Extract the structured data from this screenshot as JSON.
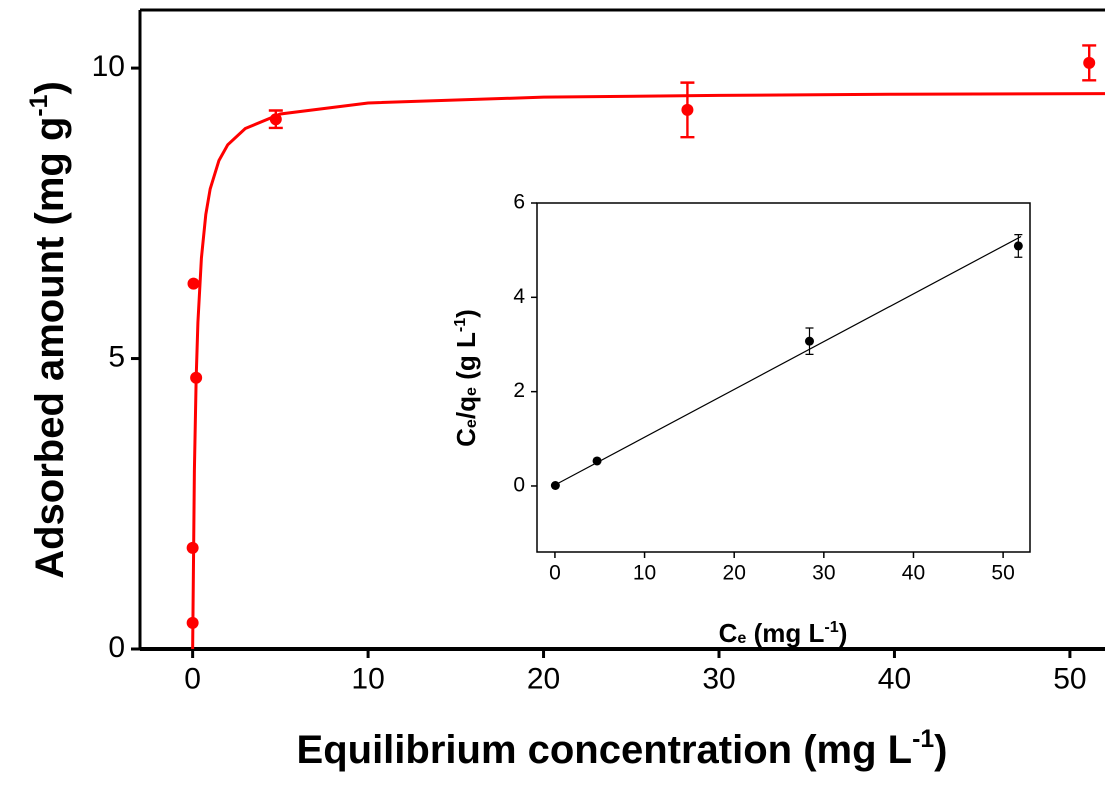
{
  "chart_data": [
    {
      "type": "scatter",
      "xlabel": [
        {
          "t": "Equilibrium concentration (mg L"
        },
        {
          "t": "-1",
          "s": "sup"
        },
        {
          "t": ")"
        }
      ],
      "ylabel": [
        {
          "t": "Adsorbed amount (mg g"
        },
        {
          "t": "-1",
          "s": "sup"
        },
        {
          "t": ")"
        }
      ],
      "xlim": [
        -3,
        52
      ],
      "ylim": [
        0,
        11
      ],
      "xticks": [
        0,
        10,
        20,
        30,
        40,
        50
      ],
      "yticks": [
        0,
        5,
        10
      ],
      "color": "#ff0000",
      "points": {
        "x": [
          0,
          0,
          0.05,
          0.2,
          4.74,
          28.2,
          51.1
        ],
        "values": [
          0.45,
          1.74,
          6.29,
          4.67,
          9.12,
          9.28,
          10.09
        ],
        "errors": [
          0,
          0,
          0,
          0,
          0.15,
          0.47,
          0.3
        ]
      },
      "fit": {
        "x": [
          0,
          0.1,
          0.2,
          0.3,
          0.5,
          0.75,
          1,
          1.5,
          2,
          3,
          5,
          10,
          20,
          30,
          40,
          52
        ],
        "values": [
          0,
          3.07,
          4.65,
          5.62,
          6.73,
          7.48,
          7.92,
          8.41,
          8.68,
          8.96,
          9.21,
          9.4,
          9.5,
          9.53,
          9.55,
          9.56
        ]
      }
    },
    {
      "type": "scatter",
      "xlabel": [
        {
          "t": "C"
        },
        {
          "t": "e",
          "s": "sub"
        },
        {
          "t": " (mg L"
        },
        {
          "t": "-1",
          "s": "sup"
        },
        {
          "t": ")"
        }
      ],
      "ylabel": [
        {
          "t": "C"
        },
        {
          "t": "e",
          "s": "sub"
        },
        {
          "t": "/q"
        },
        {
          "t": "e",
          "s": "sub"
        },
        {
          "t": " (g L"
        },
        {
          "t": "-1",
          "s": "sup"
        },
        {
          "t": ")"
        }
      ],
      "xlim": [
        -2,
        53
      ],
      "ylim": [
        -1.4,
        6
      ],
      "xticks": [
        0,
        10,
        20,
        30,
        40,
        50
      ],
      "yticks": [
        0,
        2,
        4,
        6
      ],
      "color": "#000000",
      "points": {
        "x": [
          0.05,
          4.7,
          28.4,
          51.7
        ],
        "values": [
          0.01,
          0.53,
          3.07,
          5.09
        ],
        "errors": [
          0,
          0,
          0.28,
          0.24
        ]
      },
      "fit": {
        "x": [
          0,
          52
        ],
        "values": [
          0.02,
          5.29
        ]
      }
    }
  ]
}
